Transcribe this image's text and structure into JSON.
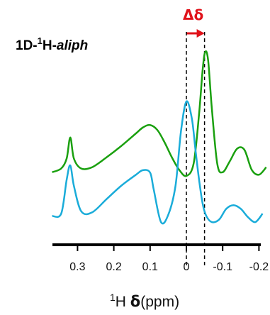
{
  "chart_data": {
    "type": "line",
    "title": {
      "prefix": "1D-",
      "superscript": "1",
      "nucleus": "H-",
      "italic": "aliph"
    },
    "annotation": {
      "label": "Δδ",
      "from_ppm": 0,
      "to_ppm": -0.05,
      "color": "#e0121a"
    },
    "xlabel": {
      "superscript": "1",
      "nucleus": "H ",
      "symbol": "δ",
      "unit": "(ppm)"
    },
    "x_reversed": true,
    "xlim": [
      0.37,
      -0.2
    ],
    "ticks": [
      {
        "value": 0.3,
        "label": "0.3"
      },
      {
        "value": 0.2,
        "label": "0.2"
      },
      {
        "value": 0.1,
        "label": "0.1"
      },
      {
        "value": 0,
        "label": "0"
      },
      {
        "value": -0.1,
        "label": "-0.1"
      },
      {
        "value": -0.2,
        "label": "-0.2"
      }
    ],
    "reference_lines_ppm": [
      0,
      -0.05
    ],
    "series": [
      {
        "color": "#1aa00f",
        "x": [
          0.37,
          0.345,
          0.33,
          0.32,
          0.31,
          0.29,
          0.26,
          0.22,
          0.18,
          0.14,
          0.12,
          0.1,
          0.08,
          0.06,
          0.04,
          0.02,
          0.0,
          -0.02,
          -0.035,
          -0.045,
          -0.052,
          -0.06,
          -0.07,
          -0.085,
          -0.1,
          -0.12,
          -0.14,
          -0.16,
          -0.18,
          -0.2,
          -0.22
        ],
        "y": [
          0.03,
          0.06,
          0.14,
          0.31,
          0.14,
          0.06,
          0.07,
          0.15,
          0.24,
          0.34,
          0.39,
          0.41,
          0.37,
          0.27,
          0.15,
          0.05,
          0.0,
          0.1,
          0.5,
          0.86,
          1.0,
          0.93,
          0.55,
          0.1,
          0.03,
          0.12,
          0.22,
          0.21,
          0.05,
          0.01,
          0.07
        ]
      },
      {
        "color": "#1aacd9",
        "x": [
          0.37,
          0.345,
          0.33,
          0.32,
          0.31,
          0.29,
          0.26,
          0.22,
          0.18,
          0.14,
          0.12,
          0.1,
          0.09,
          0.07,
          0.05,
          0.03,
          0.015,
          0.0,
          -0.015,
          -0.025,
          -0.035,
          -0.045,
          -0.055,
          -0.07,
          -0.09,
          -0.11,
          -0.13,
          -0.15,
          -0.17,
          -0.19,
          -0.21
        ],
        "y": [
          0.05,
          0.07,
          0.35,
          0.47,
          0.3,
          0.09,
          0.08,
          0.19,
          0.3,
          0.39,
          0.43,
          0.41,
          0.27,
          0.0,
          0.06,
          0.3,
          0.75,
          1.0,
          0.86,
          0.6,
          0.35,
          0.15,
          0.05,
          0.0,
          0.02,
          0.11,
          0.14,
          0.11,
          0.04,
          0.0,
          0.07
        ]
      }
    ]
  }
}
